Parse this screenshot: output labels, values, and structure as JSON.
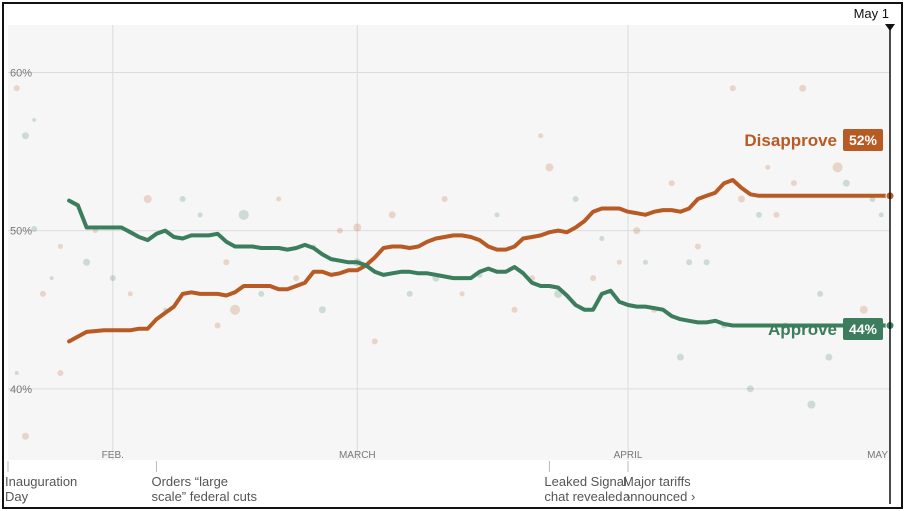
{
  "chart_data": {
    "type": "line",
    "title": "",
    "xlabel": "",
    "ylabel": "",
    "ylim": [
      35.5,
      63
    ],
    "y_ticks": [
      {
        "value": 40,
        "label": "40%"
      },
      {
        "value": 50,
        "label": "50%"
      },
      {
        "value": 60,
        "label": "60%"
      }
    ],
    "x_domain": [
      0,
      101
    ],
    "x_ticks": [
      {
        "day": 12,
        "label": "FEB."
      },
      {
        "day": 40,
        "label": "MARCH"
      },
      {
        "day": 71,
        "label": "APRIL"
      },
      {
        "day": 101,
        "label": "MAY"
      }
    ],
    "end_marker": {
      "day": 101,
      "label": "May 1"
    },
    "series": [
      {
        "name": "Disapprove",
        "color": "#b85a23",
        "badge": "52%",
        "x": [
          7,
          9,
          11,
          12,
          13,
          14,
          15,
          16,
          17,
          18,
          19,
          20,
          21,
          22,
          24,
          25,
          26,
          27,
          28,
          29,
          30,
          31,
          32,
          33,
          34,
          35,
          36,
          37,
          38,
          39,
          40,
          41,
          42,
          43,
          44,
          45,
          46,
          47,
          48,
          49,
          50,
          51,
          52,
          53,
          54,
          55,
          56,
          57,
          58,
          59,
          60,
          61,
          62,
          63,
          64,
          65,
          66,
          67,
          68,
          69,
          70,
          71,
          72,
          73,
          74,
          75,
          76,
          77,
          78,
          79,
          80,
          81,
          82,
          83,
          84,
          85,
          86,
          87,
          88,
          89,
          90,
          91,
          92,
          93,
          94,
          95,
          96,
          97,
          98,
          99,
          100,
          101
        ],
        "values": [
          43.0,
          43.6,
          43.7,
          43.7,
          43.7,
          43.7,
          43.8,
          43.8,
          44.4,
          44.8,
          45.2,
          46.0,
          46.1,
          46.0,
          46.0,
          45.9,
          46.1,
          46.5,
          46.5,
          46.5,
          46.5,
          46.3,
          46.3,
          46.5,
          46.7,
          47.4,
          47.4,
          47.2,
          47.3,
          47.5,
          47.5,
          47.8,
          48.3,
          48.9,
          49.0,
          49.0,
          48.9,
          49.0,
          49.3,
          49.5,
          49.6,
          49.7,
          49.7,
          49.6,
          49.4,
          49.0,
          48.8,
          48.8,
          49.0,
          49.5,
          49.6,
          49.7,
          49.9,
          50.0,
          49.9,
          50.2,
          50.6,
          51.2,
          51.4,
          51.4,
          51.4,
          51.2,
          51.1,
          51.0,
          51.2,
          51.3,
          51.3,
          51.2,
          51.4,
          52.0,
          52.2,
          52.4,
          53.0,
          53.2,
          52.7,
          52.3,
          52.2,
          52.2,
          52.2,
          52.2,
          52.2,
          52.2,
          52.2,
          52.2,
          52.2,
          52.2,
          52.2,
          52.2,
          52.2,
          52.2,
          52.2,
          52.2
        ]
      },
      {
        "name": "Approve",
        "color": "#3b7d5c",
        "badge": "44%",
        "x": [
          7,
          8,
          9,
          10,
          11,
          12,
          13,
          14,
          15,
          16,
          17,
          18,
          19,
          20,
          21,
          22,
          23,
          24,
          25,
          26,
          27,
          28,
          29,
          30,
          31,
          32,
          33,
          34,
          35,
          36,
          37,
          38,
          39,
          40,
          41,
          42,
          43,
          44,
          45,
          46,
          47,
          48,
          49,
          50,
          51,
          52,
          53,
          54,
          55,
          56,
          57,
          58,
          59,
          60,
          61,
          62,
          63,
          64,
          65,
          66,
          67,
          68,
          69,
          70,
          71,
          72,
          73,
          74,
          75,
          76,
          77,
          78,
          79,
          80,
          81,
          82,
          83,
          84,
          85,
          86,
          87,
          88,
          89,
          90,
          91,
          92,
          93,
          94,
          95,
          96,
          97,
          98,
          99,
          100,
          101
        ],
        "values": [
          51.9,
          51.6,
          50.2,
          50.2,
          50.2,
          50.2,
          50.2,
          49.9,
          49.6,
          49.4,
          49.8,
          50.0,
          49.6,
          49.5,
          49.7,
          49.7,
          49.7,
          49.8,
          49.3,
          49.0,
          49.0,
          49.0,
          48.9,
          48.9,
          48.9,
          48.8,
          48.9,
          49.1,
          48.9,
          48.5,
          48.2,
          48.1,
          48.0,
          48.0,
          47.8,
          47.4,
          47.2,
          47.3,
          47.4,
          47.4,
          47.3,
          47.3,
          47.2,
          47.1,
          47.0,
          47.0,
          47.0,
          47.4,
          47.6,
          47.4,
          47.4,
          47.7,
          47.3,
          46.7,
          46.5,
          46.5,
          46.4,
          45.9,
          45.3,
          45.0,
          45.0,
          46.0,
          46.2,
          45.5,
          45.3,
          45.2,
          45.2,
          45.1,
          45.0,
          44.6,
          44.4,
          44.3,
          44.2,
          44.2,
          44.3,
          44.1,
          44.0,
          44.0,
          44.0,
          44.0,
          44.0,
          44.0,
          44.0,
          44.0,
          44.0,
          44.0,
          44.0,
          44.0,
          44.0,
          44.0,
          44.0,
          44.0,
          44.0,
          44.0,
          44.0
        ]
      }
    ],
    "annotations": [
      {
        "day": 0,
        "text": "Inauguration\nDay"
      },
      {
        "day": 17,
        "text": "Orders “large\nscale” federal cuts"
      },
      {
        "day": 62,
        "text": "Leaked Signal\nchat revealed ›"
      },
      {
        "day": 71,
        "text": "Major tariffs\nannounced ›"
      }
    ],
    "polls": [
      {
        "day": 1,
        "v": 59,
        "s": "Disapprove",
        "r": 3
      },
      {
        "day": 2,
        "v": 56,
        "s": "Approve",
        "r": 3.5
      },
      {
        "day": 3,
        "v": 57,
        "s": "Approve",
        "r": 2
      },
      {
        "day": 3,
        "v": 50.1,
        "s": "Approve",
        "r": 3
      },
      {
        "day": 4,
        "v": 46,
        "s": "Disapprove",
        "r": 3
      },
      {
        "day": 5,
        "v": 47,
        "s": "Approve",
        "r": 2
      },
      {
        "day": 6,
        "v": 49,
        "s": "Disapprove",
        "r": 2.5
      },
      {
        "day": 6,
        "v": 41,
        "s": "Disapprove",
        "r": 3
      },
      {
        "day": 2,
        "v": 37,
        "s": "Disapprove",
        "r": 3.5
      },
      {
        "day": 1,
        "v": 41,
        "s": "Approve",
        "r": 2
      },
      {
        "day": 9,
        "v": 48,
        "s": "Approve",
        "r": 3.5
      },
      {
        "day": 10,
        "v": 50,
        "s": "Disapprove",
        "r": 2.5
      },
      {
        "day": 12,
        "v": 47,
        "s": "Approve",
        "r": 3
      },
      {
        "day": 14,
        "v": 46,
        "s": "Disapprove",
        "r": 2.5
      },
      {
        "day": 16,
        "v": 52,
        "s": "Disapprove",
        "r": 4
      },
      {
        "day": 18,
        "v": 45,
        "s": "Approve",
        "r": 2
      },
      {
        "day": 20,
        "v": 52,
        "s": "Approve",
        "r": 3
      },
      {
        "day": 22,
        "v": 51,
        "s": "Approve",
        "r": 2.5
      },
      {
        "day": 24,
        "v": 44,
        "s": "Disapprove",
        "r": 3
      },
      {
        "day": 25,
        "v": 48,
        "s": "Disapprove",
        "r": 3
      },
      {
        "day": 26,
        "v": 45,
        "s": "Disapprove",
        "r": 5
      },
      {
        "day": 27,
        "v": 51,
        "s": "Approve",
        "r": 5
      },
      {
        "day": 29,
        "v": 46,
        "s": "Approve",
        "r": 3
      },
      {
        "day": 31,
        "v": 52,
        "s": "Disapprove",
        "r": 2.5
      },
      {
        "day": 33,
        "v": 47,
        "s": "Disapprove",
        "r": 3
      },
      {
        "day": 35,
        "v": 49,
        "s": "Approve",
        "r": 2
      },
      {
        "day": 36,
        "v": 45,
        "s": "Approve",
        "r": 3.5
      },
      {
        "day": 38,
        "v": 50,
        "s": "Disapprove",
        "r": 3
      },
      {
        "day": 40,
        "v": 48,
        "s": "Approve",
        "r": 4
      },
      {
        "day": 40,
        "v": 50.2,
        "s": "Disapprove",
        "r": 4
      },
      {
        "day": 42,
        "v": 43,
        "s": "Disapprove",
        "r": 3
      },
      {
        "day": 44,
        "v": 51,
        "s": "Disapprove",
        "r": 3.5
      },
      {
        "day": 46,
        "v": 46,
        "s": "Approve",
        "r": 3
      },
      {
        "day": 49,
        "v": 47,
        "s": "Approve",
        "r": 3.5
      },
      {
        "day": 50,
        "v": 52,
        "s": "Disapprove",
        "r": 3
      },
      {
        "day": 52,
        "v": 46,
        "s": "Disapprove",
        "r": 2.5
      },
      {
        "day": 54,
        "v": 47.2,
        "s": "Approve",
        "r": 3
      },
      {
        "day": 56,
        "v": 51,
        "s": "Approve",
        "r": 2.5
      },
      {
        "day": 58,
        "v": 45,
        "s": "Disapprove",
        "r": 3
      },
      {
        "day": 60,
        "v": 47,
        "s": "Disapprove",
        "r": 3
      },
      {
        "day": 61,
        "v": 56,
        "s": "Disapprove",
        "r": 2.5
      },
      {
        "day": 62,
        "v": 54,
        "s": "Disapprove",
        "r": 4
      },
      {
        "day": 63,
        "v": 46,
        "s": "Approve",
        "r": 4
      },
      {
        "day": 65,
        "v": 52,
        "s": "Approve",
        "r": 3
      },
      {
        "day": 67,
        "v": 47,
        "s": "Disapprove",
        "r": 3
      },
      {
        "day": 68,
        "v": 49.5,
        "s": "Approve",
        "r": 2.5
      },
      {
        "day": 70,
        "v": 48,
        "s": "Disapprove",
        "r": 2.5
      },
      {
        "day": 72,
        "v": 50,
        "s": "Disapprove",
        "r": 3.5
      },
      {
        "day": 73,
        "v": 48,
        "s": "Approve",
        "r": 2.5
      },
      {
        "day": 74,
        "v": 45,
        "s": "Disapprove",
        "r": 3
      },
      {
        "day": 76,
        "v": 53,
        "s": "Disapprove",
        "r": 3
      },
      {
        "day": 77,
        "v": 42,
        "s": "Approve",
        "r": 3.5
      },
      {
        "day": 78,
        "v": 48,
        "s": "Approve",
        "r": 3
      },
      {
        "day": 79,
        "v": 49,
        "s": "Disapprove",
        "r": 3
      },
      {
        "day": 80,
        "v": 48,
        "s": "Approve",
        "r": 3
      },
      {
        "day": 82,
        "v": 44,
        "s": "Approve",
        "r": 3
      },
      {
        "day": 83,
        "v": 59,
        "s": "Disapprove",
        "r": 3
      },
      {
        "day": 84,
        "v": 52,
        "s": "Disapprove",
        "r": 3.5
      },
      {
        "day": 85,
        "v": 40,
        "s": "Approve",
        "r": 3.5
      },
      {
        "day": 86,
        "v": 51,
        "s": "Approve",
        "r": 3
      },
      {
        "day": 87,
        "v": 54,
        "s": "Disapprove",
        "r": 2.5
      },
      {
        "day": 88,
        "v": 51,
        "s": "Disapprove",
        "r": 3
      },
      {
        "day": 89,
        "v": 44,
        "s": "Approve",
        "r": 3
      },
      {
        "day": 90,
        "v": 53,
        "s": "Disapprove",
        "r": 3
      },
      {
        "day": 91,
        "v": 59,
        "s": "Disapprove",
        "r": 3.5
      },
      {
        "day": 92,
        "v": 39,
        "s": "Approve",
        "r": 4
      },
      {
        "day": 93,
        "v": 46,
        "s": "Approve",
        "r": 3
      },
      {
        "day": 94,
        "v": 42,
        "s": "Approve",
        "r": 3.5
      },
      {
        "day": 95,
        "v": 54,
        "s": "Disapprove",
        "r": 5
      },
      {
        "day": 96,
        "v": 53,
        "s": "Approve",
        "r": 3.5
      },
      {
        "day": 97,
        "v": 44,
        "s": "Approve",
        "r": 3
      },
      {
        "day": 98,
        "v": 45,
        "s": "Disapprove",
        "r": 4
      },
      {
        "day": 99,
        "v": 52,
        "s": "Approve",
        "r": 3
      },
      {
        "day": 100,
        "v": 51,
        "s": "Approve",
        "r": 2.5
      }
    ]
  }
}
